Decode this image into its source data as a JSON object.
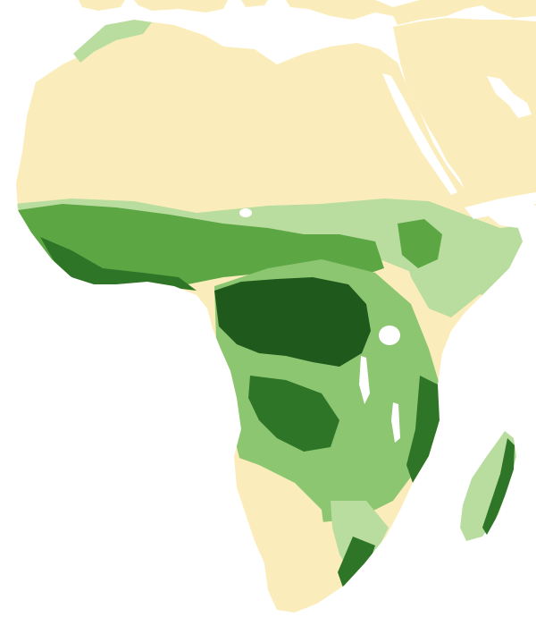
{
  "map": {
    "type": "vegetation-cover",
    "region": "Africa",
    "has_legend": false,
    "has_title": false,
    "colors": {
      "background": "#ffffff",
      "water": "#ffffff",
      "arid": "#fbedbb",
      "sparse": "#b9dd9f",
      "open": "#8cc671",
      "woodland": "#5da644",
      "forest": "#2f7527",
      "dense_forest": "#1f5a1c"
    }
  }
}
